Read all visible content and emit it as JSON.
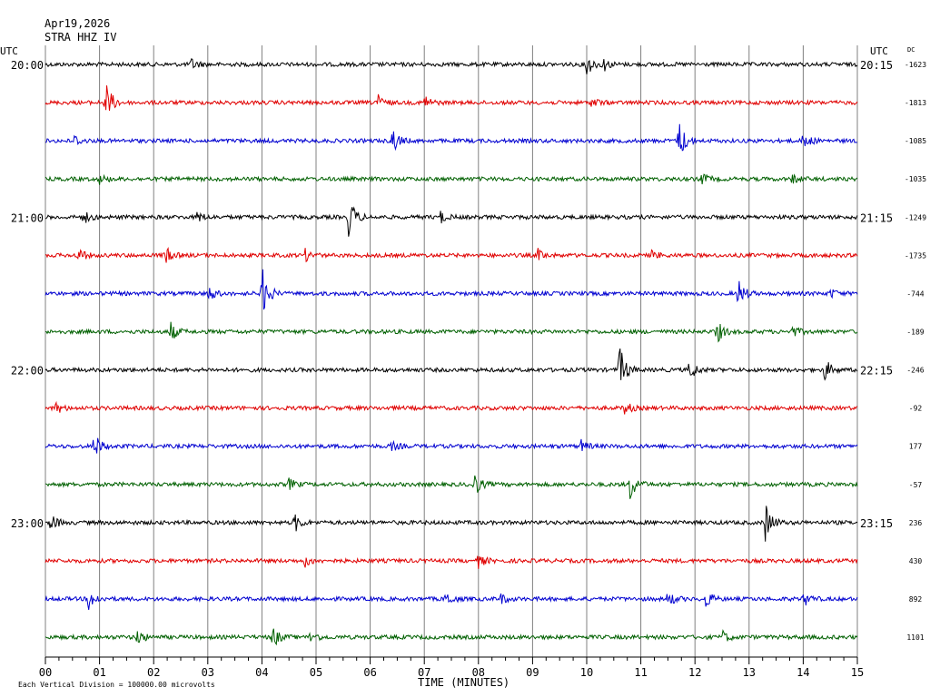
{
  "header": {
    "date": "Apr19,2026",
    "station": "STRA HHZ IV"
  },
  "left_axis_title": "UTC",
  "right_axis_title": "UTC",
  "dc_title": "DC",
  "left_hour_labels": [
    "20:00",
    "21:00",
    "22:00",
    "23:00"
  ],
  "right_hour_labels": [
    "20:15",
    "21:15",
    "22:15",
    "23:15"
  ],
  "footer": {
    "xlabel": "TIME (MINUTES)",
    "scale_note": "Each Vertical Division = 100000.00 microvolts"
  },
  "colors": {
    "black": "#000000",
    "red": "#e00000",
    "blue": "#0000d0",
    "green": "#006000",
    "grid": "#808080"
  },
  "chart_data": {
    "type": "line",
    "title": "STRA HHZ IV",
    "xlabel": "TIME (MINUTES)",
    "xlim": [
      0,
      15
    ],
    "x_ticks": [
      "00",
      "01",
      "02",
      "03",
      "04",
      "05",
      "06",
      "07",
      "08",
      "09",
      "10",
      "11",
      "12",
      "13",
      "14",
      "15"
    ],
    "grid": true,
    "series": [
      {
        "color": "black",
        "dc": "-1623",
        "bursts": [
          [
            2.7,
            0.5
          ],
          [
            10.0,
            1.0
          ],
          [
            10.3,
            0.6
          ]
        ]
      },
      {
        "color": "red",
        "dc": "-1813",
        "bursts": [
          [
            1.1,
            2.2
          ],
          [
            6.1,
            1.0
          ],
          [
            7.0,
            0.7
          ],
          [
            10.1,
            0.5
          ]
        ]
      },
      {
        "color": "blue",
        "dc": "-1085",
        "bursts": [
          [
            0.5,
            0.7
          ],
          [
            6.4,
            1.3
          ],
          [
            11.7,
            2.0
          ],
          [
            14.0,
            0.8
          ]
        ]
      },
      {
        "color": "green",
        "dc": "-1035",
        "bursts": [
          [
            1.0,
            0.4
          ],
          [
            12.1,
            0.7
          ],
          [
            13.8,
            0.4
          ]
        ]
      },
      {
        "color": "black",
        "dc": "-1249",
        "bursts": [
          [
            0.7,
            0.6
          ],
          [
            2.8,
            0.5
          ],
          [
            5.6,
            2.0
          ],
          [
            7.3,
            0.5
          ]
        ]
      },
      {
        "color": "red",
        "dc": "-1735",
        "bursts": [
          [
            0.6,
            0.7
          ],
          [
            2.2,
            0.9
          ],
          [
            4.8,
            0.5
          ],
          [
            9.1,
            0.5
          ],
          [
            11.2,
            0.4
          ]
        ]
      },
      {
        "color": "blue",
        "dc": "-744",
        "bursts": [
          [
            3.0,
            0.8
          ],
          [
            4.0,
            2.5
          ],
          [
            12.8,
            1.3
          ],
          [
            14.5,
            0.4
          ]
        ]
      },
      {
        "color": "green",
        "dc": "-189",
        "bursts": [
          [
            2.3,
            1.0
          ],
          [
            12.4,
            1.1
          ],
          [
            13.8,
            0.5
          ]
        ]
      },
      {
        "color": "black",
        "dc": "-246",
        "bursts": [
          [
            10.6,
            2.3
          ],
          [
            11.9,
            1.0
          ],
          [
            14.4,
            1.0
          ]
        ]
      },
      {
        "color": "red",
        "dc": "-92",
        "bursts": [
          [
            0.2,
            0.5
          ],
          [
            10.7,
            0.6
          ]
        ]
      },
      {
        "color": "blue",
        "dc": "177",
        "bursts": [
          [
            0.9,
            1.2
          ],
          [
            6.4,
            0.4
          ],
          [
            9.9,
            0.5
          ]
        ]
      },
      {
        "color": "green",
        "dc": "-57",
        "bursts": [
          [
            4.5,
            0.5
          ],
          [
            7.9,
            1.4
          ],
          [
            10.8,
            1.4
          ]
        ]
      },
      {
        "color": "black",
        "dc": "236",
        "bursts": [
          [
            0.1,
            0.8
          ],
          [
            4.6,
            0.9
          ],
          [
            13.3,
            1.8
          ]
        ]
      },
      {
        "color": "red",
        "dc": "430",
        "bursts": [
          [
            4.8,
            0.5
          ],
          [
            8.0,
            0.6
          ]
        ]
      },
      {
        "color": "blue",
        "dc": "892",
        "bursts": [
          [
            0.8,
            1.0
          ],
          [
            7.4,
            0.7
          ],
          [
            8.4,
            0.5
          ],
          [
            11.5,
            0.7
          ],
          [
            12.2,
            0.8
          ],
          [
            14.0,
            0.7
          ]
        ]
      },
      {
        "color": "green",
        "dc": "1101",
        "bursts": [
          [
            1.7,
            0.7
          ],
          [
            4.2,
            1.0
          ],
          [
            4.9,
            0.6
          ],
          [
            12.5,
            0.6
          ]
        ]
      }
    ]
  }
}
